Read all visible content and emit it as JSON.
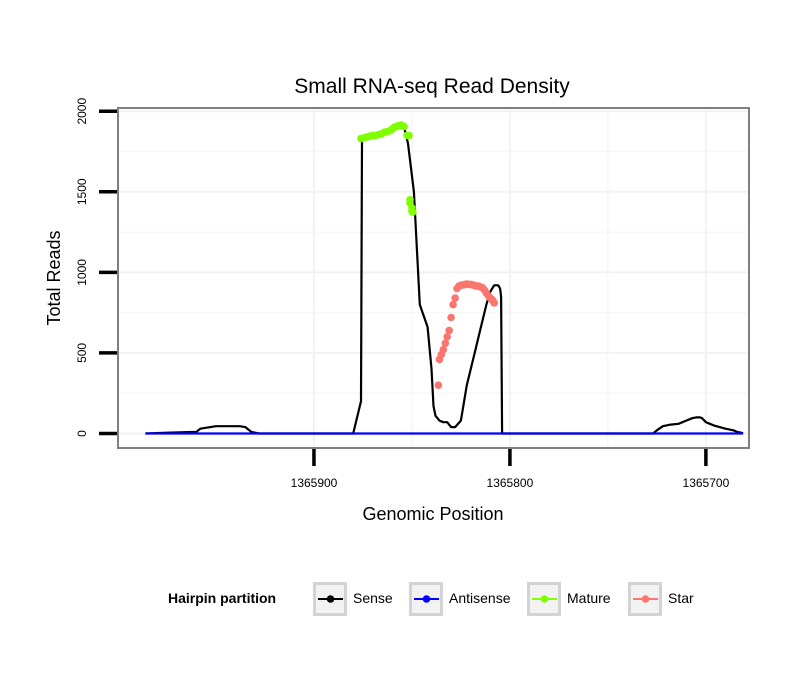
{
  "chart_data": {
    "type": "line",
    "title": "Small RNA-seq Read Density",
    "xlabel": "Genomic Position",
    "ylabel": "Total Reads",
    "x_reversed": true,
    "xlim": [
      1365678,
      1366000
    ],
    "ylim": [
      -90,
      2020
    ],
    "x_ticks": [
      1365900,
      1365800,
      1365700
    ],
    "x_tick_labels": [
      "1365900",
      "1365800",
      "1365700"
    ],
    "y_ticks": [
      0,
      500,
      1000,
      1500,
      2000
    ],
    "y_tick_labels": [
      "0",
      "500",
      "1000",
      "1500",
      "2000"
    ],
    "grid": true,
    "legend_position": "bottom",
    "legend_title": "Hairpin partition",
    "series": [
      {
        "name": "Sense",
        "color": "#000000",
        "x": [
          1365986,
          1365975,
          1365960,
          1365958,
          1365950,
          1365938,
          1365935,
          1365932,
          1365928,
          1365880,
          1365876,
          1365875.5,
          1365874,
          1365871,
          1365868,
          1365864,
          1365861,
          1365859,
          1365858,
          1365856,
          1365855,
          1365854,
          1365852,
          1365849,
          1365846,
          1365842,
          1365840,
          1365839,
          1365838,
          1365836,
          1365834,
          1365832,
          1365830,
          1365828,
          1365825,
          1365822,
          1365818,
          1365815,
          1365812,
          1365810,
          1365808,
          1365806,
          1365805,
          1365804.5,
          1365804,
          1365780,
          1365740,
          1365727,
          1365725,
          1365722,
          1365718,
          1365714,
          1365712,
          1365710,
          1365707,
          1365705,
          1365703,
          1365702,
          1365700,
          1365698,
          1365696,
          1365693,
          1365690,
          1365686,
          1365684,
          1365682,
          1365681
        ],
        "values": [
          0,
          5,
          10,
          30,
          45,
          45,
          40,
          10,
          0,
          0,
          200,
          1820,
          1830,
          1840,
          1850,
          1860,
          1870,
          1880,
          1900,
          1920,
          1920,
          1900,
          1800,
          1500,
          800,
          660,
          400,
          170,
          110,
          80,
          70,
          70,
          40,
          40,
          80,
          300,
          500,
          650,
          800,
          880,
          920,
          920,
          900,
          850,
          0,
          0,
          0,
          0,
          20,
          45,
          55,
          60,
          70,
          80,
          95,
          100,
          100,
          95,
          70,
          60,
          50,
          40,
          30,
          20,
          10,
          5,
          0
        ]
      },
      {
        "name": "Antisense",
        "color": "#0000ff",
        "x": [
          1365986,
          1365681
        ],
        "values": [
          0,
          0
        ]
      },
      {
        "name": "Mature",
        "color": "#7fff00",
        "x": [
          1365876,
          1365874.5,
          1365873,
          1365871.5,
          1365870,
          1365868.5,
          1365867,
          1365865.5,
          1365864,
          1365862.5,
          1365861,
          1365860,
          1365859,
          1365858,
          1365857,
          1365856,
          1365855.5,
          1365855,
          1365854,
          1365852.5,
          1365851.5,
          1365851,
          1365851,
          1365850,
          1365850,
          1365849.5
        ],
        "values": [
          1830,
          1835,
          1840,
          1845,
          1850,
          1850,
          1855,
          1860,
          1870,
          1875,
          1880,
          1890,
          1900,
          1905,
          1910,
          1910,
          1915,
          1910,
          1905,
          1850,
          1850,
          1450,
          1430,
          1400,
          1380,
          1375
        ]
      },
      {
        "name": "Star",
        "color": "#f8766d",
        "x": [
          1365836.5,
          1365836,
          1365835,
          1365834,
          1365833,
          1365832,
          1365831,
          1365830,
          1365829,
          1365828,
          1365827,
          1365826,
          1365825,
          1365824,
          1365823,
          1365822,
          1365821,
          1365820,
          1365819,
          1365818,
          1365817,
          1365816,
          1365815,
          1365814,
          1365813,
          1365812,
          1365811,
          1365810,
          1365809,
          1365808.5,
          1365808
        ],
        "values": [
          300,
          460,
          490,
          520,
          560,
          600,
          640,
          720,
          800,
          840,
          900,
          915,
          920,
          922,
          925,
          928,
          925,
          925,
          922,
          918,
          915,
          915,
          910,
          905,
          890,
          870,
          855,
          840,
          830,
          820,
          810
        ]
      }
    ]
  }
}
